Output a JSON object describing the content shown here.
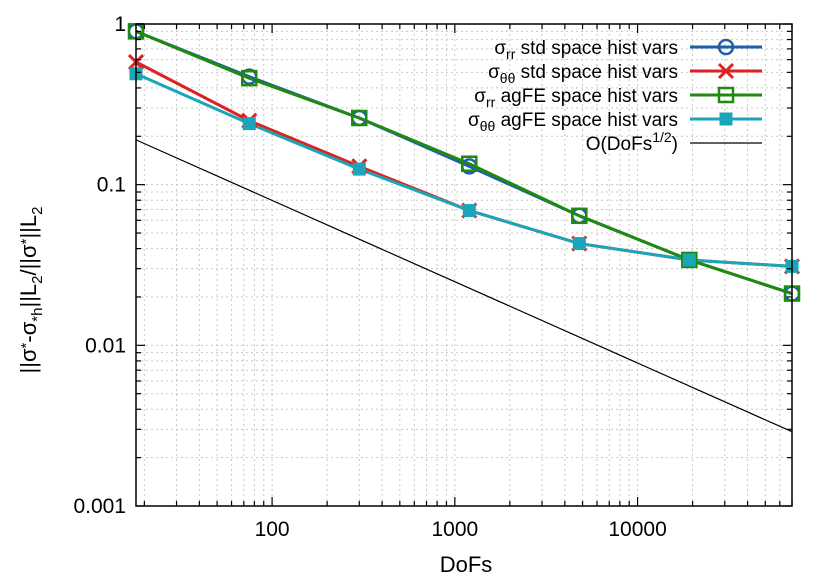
{
  "chart_data": {
    "type": "line",
    "xscale": "log",
    "yscale": "log",
    "xlabel": "DoFs",
    "ylabel": "||σ*-σ*h||L2/||σ*||L2",
    "ylabel_parts": {
      "a": "||σ",
      "b": "*",
      "c": "-σ",
      "d": "*h",
      "e": "||L",
      "f": "2",
      "g": "/||σ",
      "h": "*",
      "i": "||L",
      "j": "2"
    },
    "xlim": [
      18,
      70000
    ],
    "ylim": [
      0.001,
      1
    ],
    "x_ticks": [
      {
        "value": 100,
        "label": "100"
      },
      {
        "value": 1000,
        "label": "1000"
      },
      {
        "value": 10000,
        "label": "10000"
      }
    ],
    "y_ticks": [
      {
        "value": 1,
        "label": "1"
      },
      {
        "value": 0.1,
        "label": "0.1"
      },
      {
        "value": 0.01,
        "label": "0.01"
      },
      {
        "value": 0.001,
        "label": "0.001"
      }
    ],
    "grid": true,
    "legend_position": "top-right",
    "series": [
      {
        "sym": "σ",
        "sub": "rr",
        "rest": " std space hist vars",
        "color": "#1f5fa8",
        "marker": "circle-open",
        "x": [
          18,
          75,
          300,
          1200,
          4800,
          19200,
          70000
        ],
        "y": [
          0.9,
          0.47,
          0.26,
          0.13,
          0.064,
          0.034,
          0.021
        ]
      },
      {
        "sym": "σ",
        "sub": "θθ",
        "rest": " std space hist vars",
        "color": "#dd2222",
        "marker": "cross",
        "x": [
          18,
          75,
          300,
          1200,
          4800,
          19200,
          70000
        ],
        "y": [
          0.58,
          0.25,
          0.13,
          0.069,
          0.043,
          0.034,
          0.031
        ]
      },
      {
        "sym": "σ",
        "sub": "rr",
        "rest": " agFE space hist vars",
        "color": "#1f8a0e",
        "marker": "square-open",
        "x": [
          18,
          75,
          300,
          1200,
          4800,
          19200,
          70000
        ],
        "y": [
          0.9,
          0.46,
          0.26,
          0.135,
          0.064,
          0.034,
          0.021
        ]
      },
      {
        "sym": "σ",
        "sub": "θθ",
        "rest": " agFE space hist vars",
        "color": "#1aa6b8",
        "marker": "square-filled",
        "x": [
          18,
          75,
          300,
          1200,
          4800,
          19200,
          70000
        ],
        "y": [
          0.49,
          0.24,
          0.125,
          0.069,
          0.043,
          0.034,
          0.031
        ]
      },
      {
        "sym": "O(DoFs",
        "sup": "1/2",
        "rest": ")",
        "color": "#000000",
        "marker": "none",
        "x": [
          18,
          70000
        ],
        "y": [
          0.19,
          0.0029
        ]
      }
    ]
  }
}
